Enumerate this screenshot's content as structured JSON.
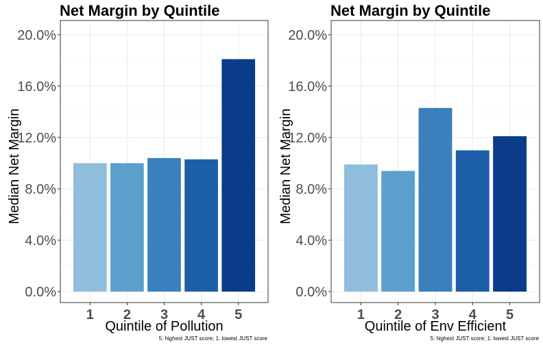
{
  "colors": {
    "background": "#ffffff",
    "panel_border": "#333333",
    "grid_major": "#ebebeb",
    "grid_minor": "#f4f4f4",
    "tick_text": "#4d4d4d",
    "title_text": "#000000",
    "bars": [
      "#8fbedd",
      "#5b9fcd",
      "#3a80bd",
      "#1d5ea8",
      "#0b3c8a"
    ]
  },
  "chart_data": [
    {
      "type": "bar",
      "title": "Net Margin by Quintile",
      "xlabel": "Quintile of Pollution",
      "ylabel": "Median Net Margin",
      "caption": "5: highest JUST score; 1: lowest JUST score",
      "categories": [
        "1",
        "2",
        "3",
        "4",
        "5"
      ],
      "values": [
        0.1,
        0.1,
        0.104,
        0.103,
        0.181
      ],
      "ylim": [
        0,
        0.21
      ],
      "yticks": [
        0,
        0.04,
        0.08,
        0.12,
        0.16,
        0.2
      ],
      "ytick_labels": [
        "0.0%",
        "4.0%",
        "8.0%",
        "12.0%",
        "16.0%",
        "20.0%"
      ],
      "grid": true,
      "legend": "none"
    },
    {
      "type": "bar",
      "title": "Net Margin by Quintile",
      "xlabel": "Quintile of Env Efficient",
      "ylabel": "Median Net Margin",
      "caption": "5: highest JUST score; 1: lowest JUST score",
      "categories": [
        "1",
        "2",
        "3",
        "4",
        "5"
      ],
      "values": [
        0.099,
        0.094,
        0.143,
        0.11,
        0.121
      ],
      "ylim": [
        0,
        0.21
      ],
      "yticks": [
        0,
        0.04,
        0.08,
        0.12,
        0.16,
        0.2
      ],
      "ytick_labels": [
        "0.0%",
        "4.0%",
        "8.0%",
        "12.0%",
        "16.0%",
        "20.0%"
      ],
      "grid": true,
      "legend": "none"
    }
  ]
}
